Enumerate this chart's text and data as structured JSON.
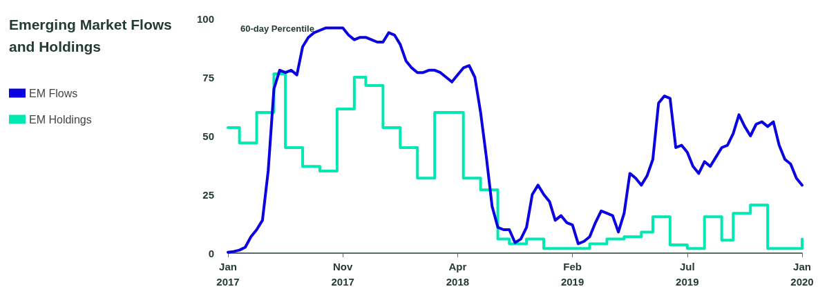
{
  "chart_data": {
    "type": "line",
    "title": "Emerging Market Flows and Holdings",
    "ylabel": "60-day Percentile",
    "categories": [
      "Jan 2017",
      null,
      null,
      null,
      null,
      null,
      null,
      null,
      null,
      null,
      null,
      null,
      null,
      null,
      null,
      null,
      null,
      null,
      null,
      null,
      "Nov 2017",
      null,
      null,
      null,
      null,
      null,
      null,
      null,
      null,
      null,
      null,
      null,
      null,
      null,
      null,
      null,
      null,
      null,
      null,
      null,
      "Apr 2018",
      null,
      null,
      null,
      null,
      null,
      null,
      null,
      null,
      null,
      null,
      null,
      null,
      null,
      null,
      null,
      null,
      null,
      null,
      null,
      "Feb 2019",
      null,
      null,
      null,
      null,
      null,
      null,
      null,
      null,
      null,
      null,
      null,
      null,
      null,
      null,
      null,
      null,
      null,
      null,
      null,
      "Jul 2019",
      null,
      null,
      null,
      null,
      null,
      null,
      null,
      null,
      null,
      null,
      null,
      null,
      null,
      null,
      null,
      null,
      null,
      null,
      null,
      "Jan 2020"
    ],
    "ylim": [
      0,
      100
    ],
    "yticks": [
      0,
      25,
      50,
      75,
      100
    ],
    "legend": "left",
    "marker": "none",
    "line_style": "solid",
    "series": [
      {
        "name": "EM Flows",
        "color": "#0a00e0",
        "values": [
          0.4,
          0.7,
          1.3,
          2.5,
          7,
          10,
          14,
          35,
          70,
          78,
          77,
          78,
          76,
          88,
          92,
          94,
          95,
          96,
          96,
          96,
          96,
          93,
          91,
          92,
          92,
          91,
          90,
          90,
          94,
          93,
          89,
          82,
          79,
          77,
          77,
          78,
          78,
          77,
          75,
          73,
          76,
          79,
          80,
          75,
          60,
          41,
          20,
          11,
          10,
          10,
          4.5,
          6,
          11,
          25,
          29,
          25,
          22,
          14,
          16,
          13,
          12,
          4,
          5,
          7,
          13,
          18,
          17,
          16,
          9,
          17,
          34,
          32,
          29,
          33,
          40,
          64,
          67,
          66,
          45,
          46,
          43,
          37,
          34,
          39,
          37,
          41,
          45,
          46,
          51,
          59,
          54,
          50,
          55,
          56,
          54,
          56,
          46,
          40,
          38,
          32,
          29
        ]
      },
      {
        "name": "EM Holdings",
        "color": "#00e8b2",
        "type": "step",
        "values": [
          53.5,
          53.5,
          47,
          47,
          47,
          60,
          60,
          60,
          76.5,
          76.5,
          45,
          45,
          45,
          37,
          37,
          37,
          35,
          35,
          35,
          61.5,
          61.5,
          61.5,
          75,
          75,
          71.5,
          71.5,
          71.5,
          53.5,
          53.5,
          53.5,
          45,
          45,
          45,
          32,
          32,
          32,
          60,
          60,
          60,
          60,
          60,
          32,
          32,
          32,
          27,
          27,
          27,
          6,
          6,
          4,
          4,
          4,
          6,
          6,
          6,
          2,
          2,
          2,
          2,
          2,
          2,
          2,
          2,
          4,
          4,
          4,
          6,
          6,
          6,
          7,
          7,
          7,
          9,
          9,
          15.5,
          15.5,
          15.5,
          3.5,
          3.5,
          3.5,
          2,
          2,
          2,
          15.5,
          15.5,
          15.5,
          5.5,
          5.5,
          17,
          17,
          17,
          20.5,
          20.5,
          20.5,
          2,
          2,
          2,
          2,
          2,
          2,
          6
        ]
      }
    ]
  }
}
